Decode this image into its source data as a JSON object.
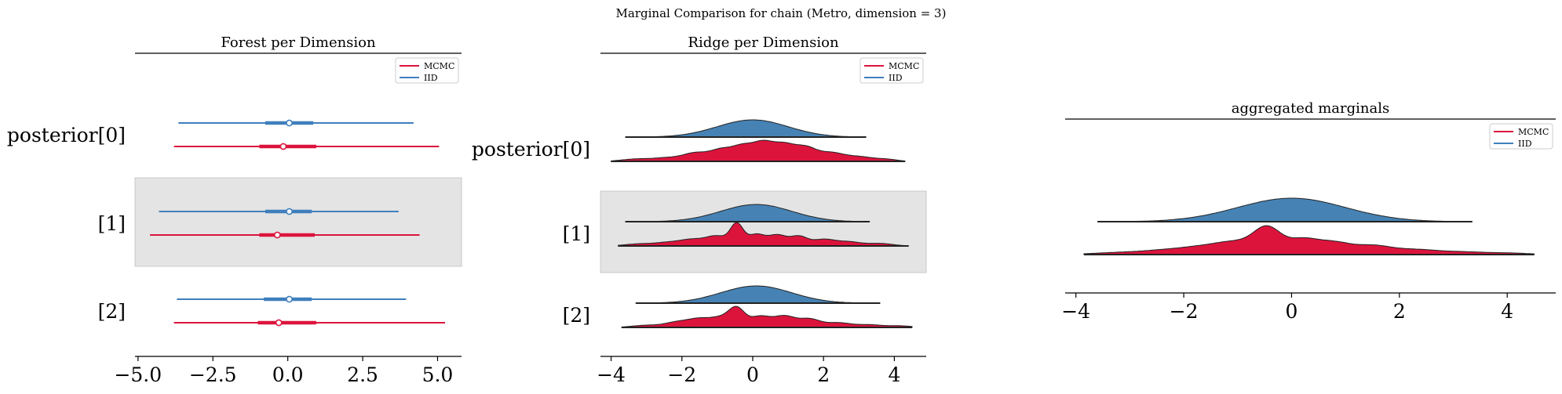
{
  "suptitle": "Marginal Comparison for chain (Metro, dimension = 3)",
  "colors": {
    "mcmc": "#dc143c",
    "iid": "#3f7fbd",
    "iid_fill": "#4682b4",
    "highlight": "#e4e4e4",
    "outline": "#222222"
  },
  "legend": {
    "entries": [
      "MCMC",
      "IID"
    ]
  },
  "chart_data": [
    {
      "type": "forest",
      "title": "Forest per Dimension",
      "xlim": [
        -5.1,
        5.8
      ],
      "xticks": [
        -5.0,
        -2.5,
        0.0,
        2.5,
        5.0
      ],
      "xtick_labels": [
        "−5.0",
        "−2.5",
        "0.0",
        "2.5",
        "5.0"
      ],
      "row_labels": [
        "posterior[0]",
        "[1]",
        "[2]"
      ],
      "highlighted_row": 1,
      "legend_position": "top-right",
      "series": [
        {
          "name": "MCMC",
          "rows": [
            {
              "min": -3.8,
              "q25": -0.95,
              "median": -0.15,
              "q75": 0.95,
              "max": 5.05
            },
            {
              "min": -4.6,
              "q25": -0.95,
              "median": -0.35,
              "q75": 0.9,
              "max": 4.4
            },
            {
              "min": -3.8,
              "q25": -1.0,
              "median": -0.3,
              "q75": 0.95,
              "max": 5.25
            }
          ]
        },
        {
          "name": "IID",
          "rows": [
            {
              "min": -3.65,
              "q25": -0.75,
              "median": 0.05,
              "q75": 0.85,
              "max": 4.2
            },
            {
              "min": -4.3,
              "q25": -0.75,
              "median": 0.05,
              "q75": 0.8,
              "max": 3.7
            },
            {
              "min": -3.7,
              "q25": -0.8,
              "median": 0.05,
              "q75": 0.8,
              "max": 3.95
            }
          ]
        }
      ]
    },
    {
      "type": "ridge",
      "title": "Ridge per Dimension",
      "xlim": [
        -4.3,
        4.9
      ],
      "xticks": [
        -4,
        -2,
        0,
        2,
        4
      ],
      "xtick_labels": [
        "−4",
        "−2",
        "0",
        "2",
        "4"
      ],
      "row_labels": [
        "posterior[0]",
        "[1]",
        "[2]"
      ],
      "highlighted_row": 1,
      "legend_position": "top-right",
      "rows": [
        {
          "iid": {
            "range": [
              -3.6,
              3.2
            ],
            "mu": 0.0,
            "sigma": 1.0
          },
          "mcmc": {
            "range": [
              -4.0,
              4.3
            ],
            "bumps": [
              [
                -3.3,
                0.1,
                0.4
              ],
              [
                -2.4,
                0.15,
                0.4
              ],
              [
                -1.6,
                0.35,
                0.35
              ],
              [
                -0.9,
                0.45,
                0.3
              ],
              [
                -0.3,
                0.6,
                0.3
              ],
              [
                0.3,
                0.75,
                0.3
              ],
              [
                0.9,
                0.65,
                0.3
              ],
              [
                1.5,
                0.55,
                0.3
              ],
              [
                2.2,
                0.35,
                0.35
              ],
              [
                3.0,
                0.2,
                0.4
              ],
              [
                3.8,
                0.08,
                0.3
              ]
            ]
          }
        },
        {
          "iid": {
            "range": [
              -3.6,
              3.3
            ],
            "mu": 0.1,
            "sigma": 1.0
          },
          "mcmc": {
            "range": [
              -3.8,
              4.4
            ],
            "bumps": [
              [
                -3.2,
                0.1,
                0.4
              ],
              [
                -2.4,
                0.15,
                0.35
              ],
              [
                -1.7,
                0.3,
                0.35
              ],
              [
                -1.0,
                0.45,
                0.3
              ],
              [
                -0.45,
                1.0,
                0.18
              ],
              [
                0.1,
                0.55,
                0.25
              ],
              [
                0.7,
                0.5,
                0.25
              ],
              [
                1.3,
                0.45,
                0.25
              ],
              [
                2.0,
                0.3,
                0.3
              ],
              [
                2.7,
                0.2,
                0.35
              ],
              [
                3.6,
                0.12,
                0.35
              ]
            ]
          }
        },
        {
          "iid": {
            "range": [
              -3.3,
              3.6
            ],
            "mu": 0.1,
            "sigma": 1.0
          },
          "mcmc": {
            "range": [
              -3.7,
              4.5
            ],
            "bumps": [
              [
                -3.0,
                0.12,
                0.4
              ],
              [
                -2.1,
                0.3,
                0.35
              ],
              [
                -1.5,
                0.4,
                0.3
              ],
              [
                -0.9,
                0.5,
                0.3
              ],
              [
                -0.45,
                0.95,
                0.22
              ],
              [
                0.2,
                0.6,
                0.3
              ],
              [
                0.9,
                0.6,
                0.3
              ],
              [
                1.6,
                0.45,
                0.3
              ],
              [
                2.4,
                0.25,
                0.35
              ],
              [
                3.3,
                0.15,
                0.4
              ],
              [
                4.2,
                0.08,
                0.3
              ]
            ]
          }
        }
      ]
    },
    {
      "type": "ridge",
      "title": "aggregated marginals",
      "xlim": [
        -4.2,
        4.9
      ],
      "xticks": [
        -4,
        -2,
        0,
        2,
        4
      ],
      "xtick_labels": [
        "−4",
        "−2",
        "0",
        "2",
        "4"
      ],
      "legend_position": "top-right",
      "rows": [
        {
          "iid": {
            "range": [
              -3.6,
              3.35
            ],
            "mu": 0.0,
            "sigma": 1.0
          },
          "mcmc": {
            "range": [
              -3.85,
              4.5
            ],
            "bumps": [
              [
                -3.2,
                0.06,
                0.5
              ],
              [
                -2.3,
                0.12,
                0.45
              ],
              [
                -1.6,
                0.2,
                0.4
              ],
              [
                -1.0,
                0.32,
                0.35
              ],
              [
                -0.45,
                0.75,
                0.25
              ],
              [
                0.2,
                0.45,
                0.3
              ],
              [
                0.8,
                0.32,
                0.3
              ],
              [
                1.5,
                0.26,
                0.35
              ],
              [
                2.3,
                0.14,
                0.4
              ],
              [
                3.2,
                0.08,
                0.45
              ],
              [
                4.1,
                0.04,
                0.35
              ]
            ]
          }
        }
      ]
    }
  ]
}
